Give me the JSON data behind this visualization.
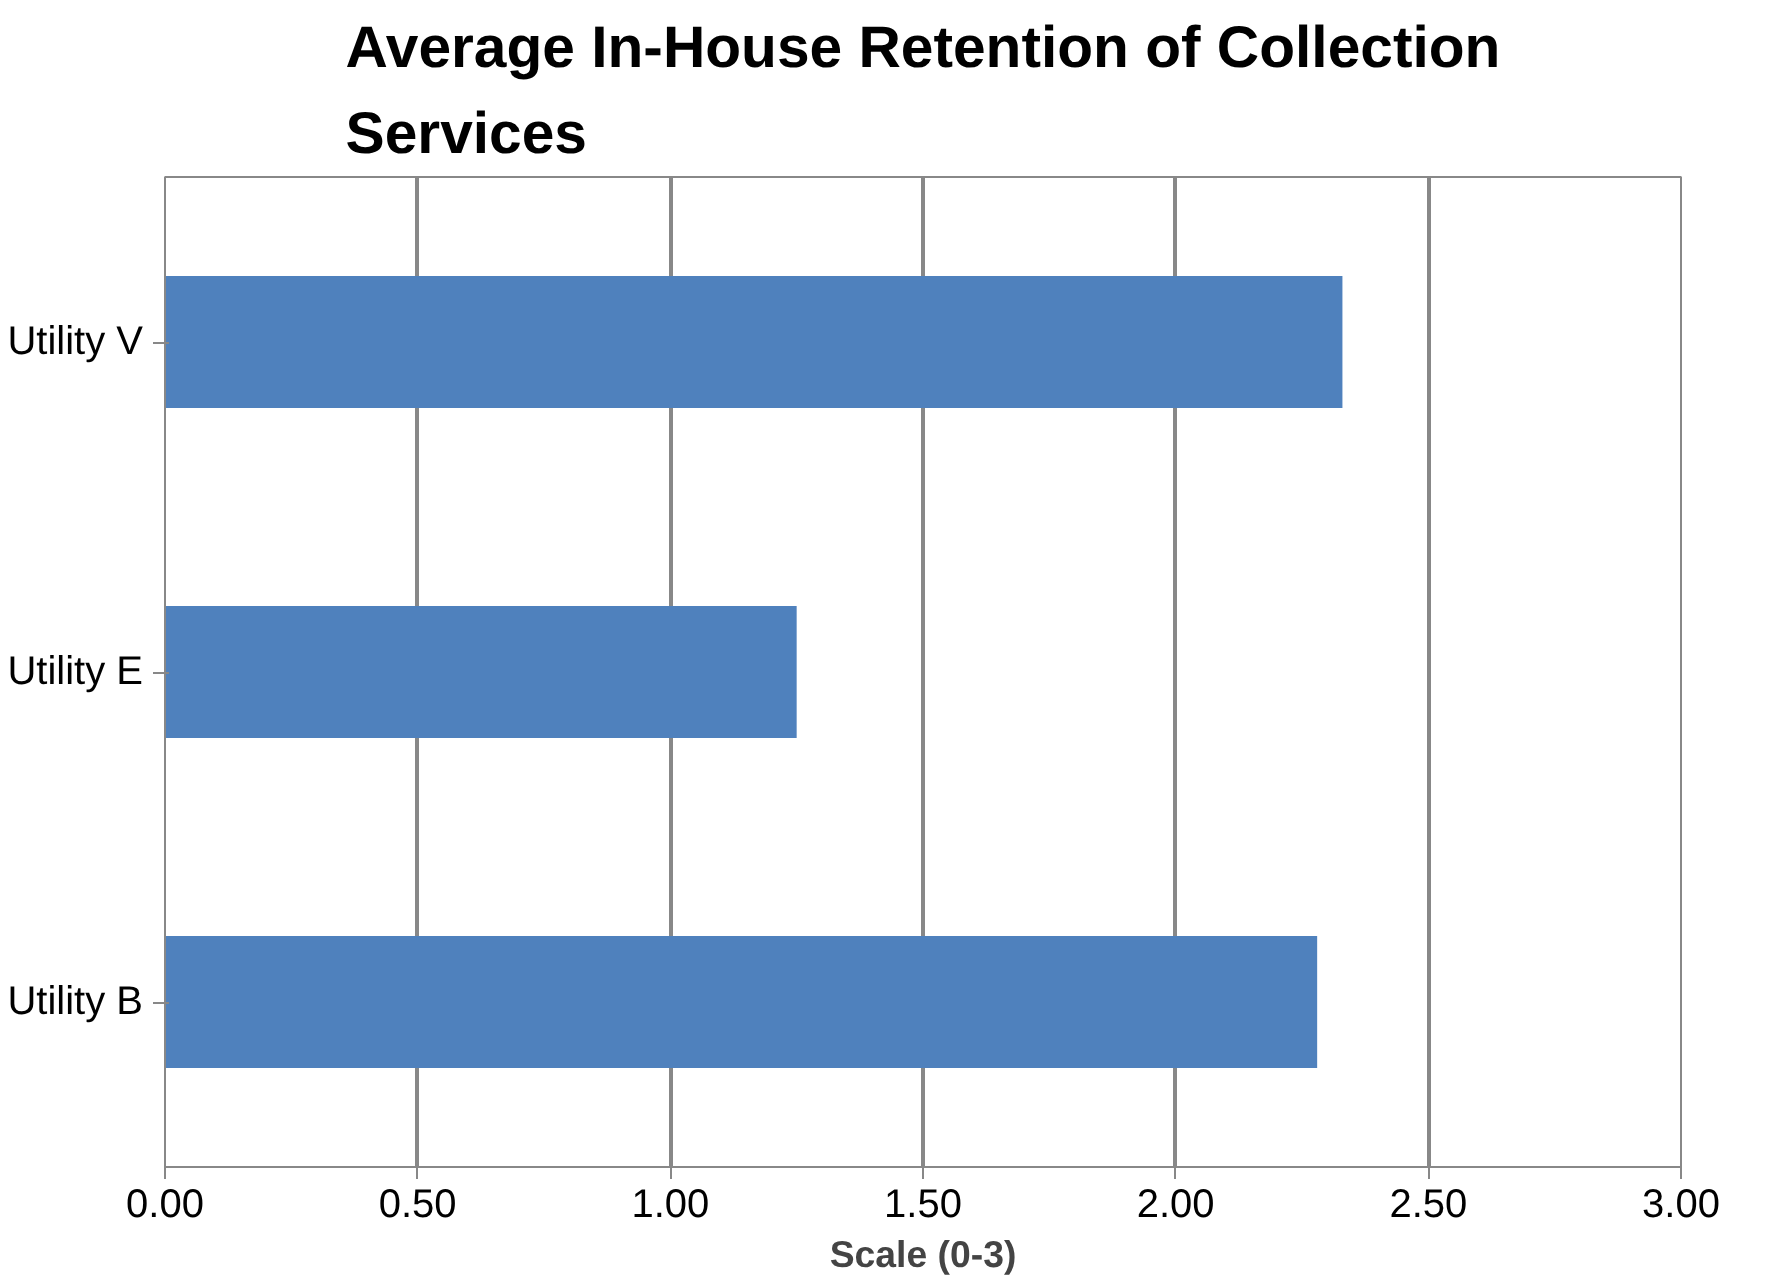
{
  "chart_data": {
    "type": "bar",
    "orientation": "horizontal",
    "title": "Average In-House Retention of Collection Services",
    "xlabel": "Scale (0-3)",
    "categories": [
      "Utility V",
      "Utility E",
      "Utility B"
    ],
    "values": [
      2.33,
      1.25,
      2.28
    ],
    "color": "#4f81bd",
    "xlim": [
      0,
      3
    ],
    "xticks": [
      {
        "value": 0,
        "label": "0.00"
      },
      {
        "value": 0.5,
        "label": "0.50"
      },
      {
        "value": 1,
        "label": "1.00"
      },
      {
        "value": 1.5,
        "label": "1.50"
      },
      {
        "value": 2,
        "label": "2.00"
      },
      {
        "value": 2.5,
        "label": "2.50"
      },
      {
        "value": 3,
        "label": "3.00"
      }
    ],
    "grid": "x"
  }
}
